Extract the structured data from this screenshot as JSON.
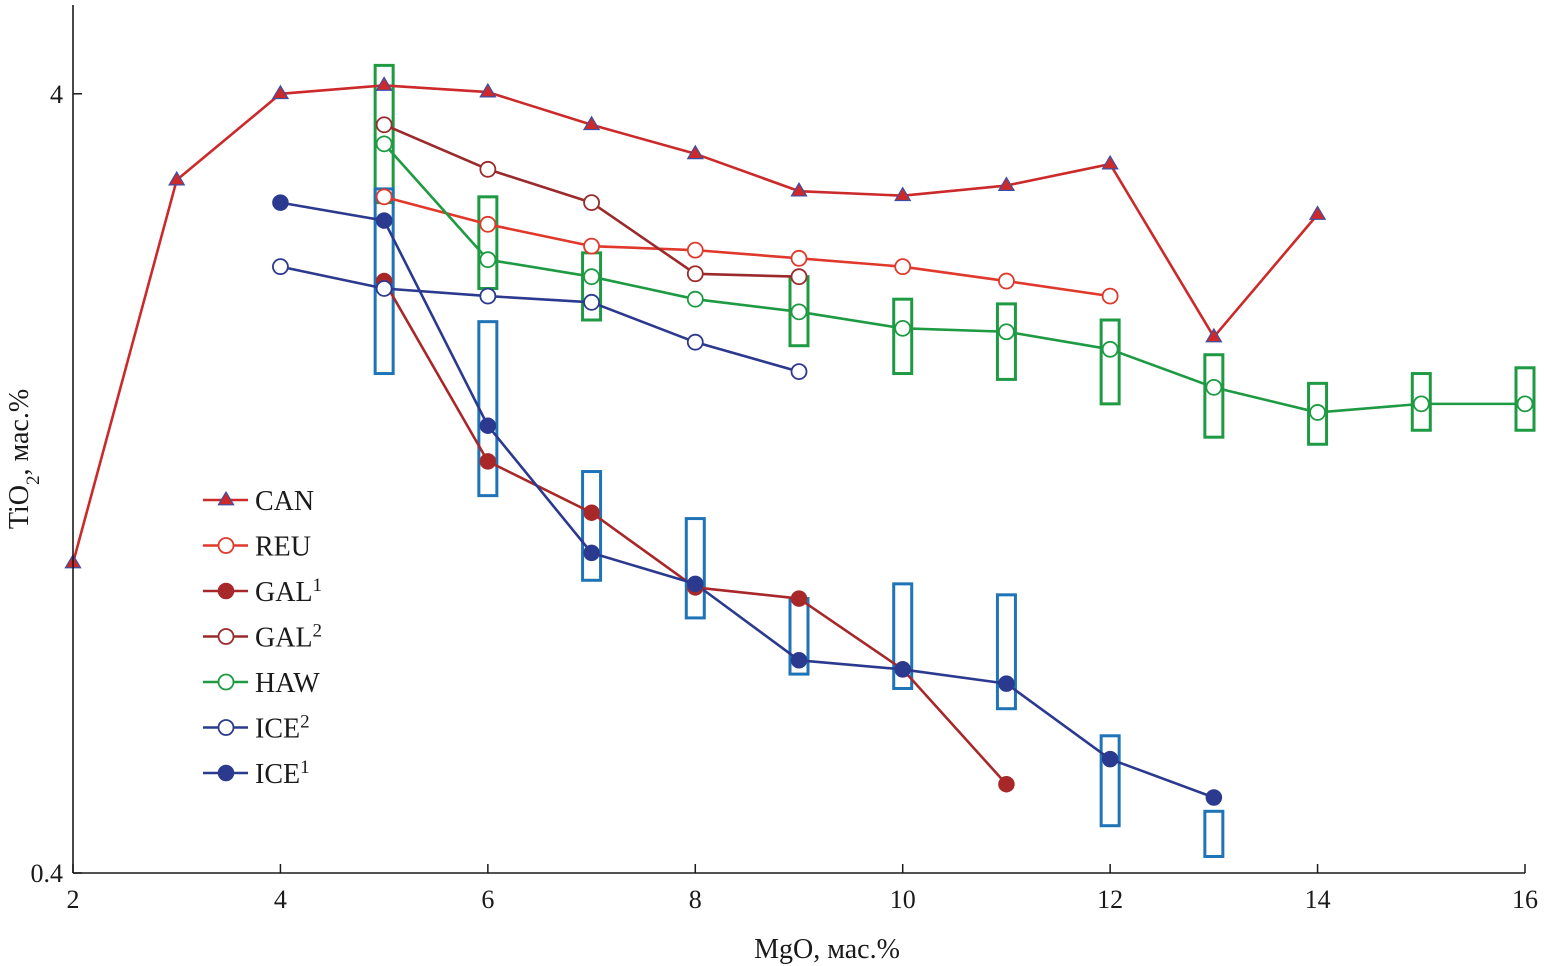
{
  "chart_data": {
    "type": "line",
    "x_axis": {
      "label_main": "MgO, мас.%",
      "range": [
        2,
        16
      ],
      "ticks": [
        2,
        4,
        6,
        8,
        10,
        12,
        14,
        16
      ],
      "tick_labels": [
        "2",
        "4",
        "6",
        "8",
        "10",
        "12",
        "14",
        "16"
      ]
    },
    "y_axis": {
      "label_base": "TiO",
      "label_sub": "2",
      "label_rest": ", мас.%",
      "scale": "log",
      "range": [
        0.4,
        5.2
      ],
      "ticks": [
        0.4,
        4
      ],
      "tick_labels": [
        "0.4",
        "4"
      ]
    },
    "legend_position": "left-middle",
    "series": [
      {
        "id": "can",
        "name": "CAN",
        "sup": "",
        "color": "#cc2a2a",
        "marker": "triangle",
        "marker_color": "#cc2a2a",
        "marker_stroke": "#3b4fa8",
        "x": [
          2,
          3,
          4,
          5,
          6,
          7,
          8,
          9,
          10,
          11,
          12,
          13,
          14
        ],
        "y": [
          1.0,
          3.1,
          4.0,
          4.1,
          4.02,
          3.65,
          3.35,
          3.0,
          2.96,
          3.05,
          3.25,
          1.95,
          2.8
        ]
      },
      {
        "id": "reu",
        "name": "REU",
        "sup": "",
        "color": "#e0392b",
        "marker": "circle-open",
        "x": [
          5,
          6,
          7,
          8,
          9,
          10,
          11,
          12
        ],
        "y": [
          2.95,
          2.72,
          2.55,
          2.52,
          2.46,
          2.4,
          2.3,
          2.2
        ]
      },
      {
        "id": "gal1",
        "name": "GAL",
        "sup": "1",
        "color": "#a8282a",
        "marker": "circle-filled",
        "x": [
          5,
          6,
          7,
          8,
          9,
          10,
          11
        ],
        "y": [
          2.3,
          1.35,
          1.16,
          0.93,
          0.9,
          0.73,
          0.52
        ]
      },
      {
        "id": "gal2",
        "name": "GAL",
        "sup": "2",
        "color": "#9a2a2c",
        "marker": "circle-open",
        "x": [
          5,
          6,
          7,
          8,
          9
        ],
        "y": [
          3.65,
          3.2,
          2.9,
          2.35,
          2.33
        ]
      },
      {
        "id": "haw",
        "name": "HAW",
        "sup": "",
        "color": "#1e9a43",
        "marker": "circle-open",
        "x": [
          5,
          6,
          7,
          8,
          9,
          10,
          11,
          12,
          13,
          14,
          15,
          16
        ],
        "y": [
          3.45,
          2.45,
          2.33,
          2.18,
          2.1,
          2.0,
          1.98,
          1.88,
          1.68,
          1.56,
          1.6,
          1.6
        ]
      },
      {
        "id": "ice2",
        "name": "ICE",
        "sup": "2",
        "color": "#2b3a8f",
        "marker": "circle-open",
        "x": [
          4,
          5,
          6,
          7,
          8,
          9
        ],
        "y": [
          2.4,
          2.25,
          2.2,
          2.16,
          1.92,
          1.76
        ]
      },
      {
        "id": "ice1",
        "name": "ICE",
        "sup": "1",
        "color": "#2b3a8f",
        "marker": "circle-filled",
        "x": [
          4,
          5,
          6,
          7,
          8,
          9,
          10,
          11,
          12,
          13
        ],
        "y": [
          2.9,
          2.75,
          1.5,
          1.03,
          0.94,
          0.75,
          0.73,
          0.7,
          0.56,
          0.5
        ]
      }
    ],
    "error_boxes": [
      {
        "group": "HAW",
        "color": "#1e9a43",
        "items": [
          {
            "x": 5,
            "low": 2.9,
            "high": 4.35
          },
          {
            "x": 6,
            "low": 2.25,
            "high": 2.95
          },
          {
            "x": 7,
            "low": 2.05,
            "high": 2.5
          },
          {
            "x": 9,
            "low": 1.9,
            "high": 2.33
          },
          {
            "x": 10,
            "low": 1.75,
            "high": 2.18
          },
          {
            "x": 11,
            "low": 1.72,
            "high": 2.15
          },
          {
            "x": 12,
            "low": 1.6,
            "high": 2.05
          },
          {
            "x": 13,
            "low": 1.45,
            "high": 1.85
          },
          {
            "x": 14,
            "low": 1.42,
            "high": 1.7
          },
          {
            "x": 15,
            "low": 1.48,
            "high": 1.75
          },
          {
            "x": 16,
            "low": 1.48,
            "high": 1.78
          }
        ]
      },
      {
        "group": "ICE1",
        "color": "#1f73b7",
        "items": [
          {
            "x": 5,
            "low": 1.75,
            "high": 3.02
          },
          {
            "x": 6,
            "low": 1.22,
            "high": 2.04
          },
          {
            "x": 7,
            "low": 0.95,
            "high": 1.31
          },
          {
            "x": 8,
            "low": 0.85,
            "high": 1.14
          },
          {
            "x": 9,
            "low": 0.72,
            "high": 0.9
          },
          {
            "x": 10,
            "low": 0.69,
            "high": 0.94
          },
          {
            "x": 11,
            "low": 0.65,
            "high": 0.91
          },
          {
            "x": 12,
            "low": 0.46,
            "high": 0.6
          },
          {
            "x": 13,
            "low": 0.42,
            "high": 0.48
          }
        ]
      }
    ]
  }
}
